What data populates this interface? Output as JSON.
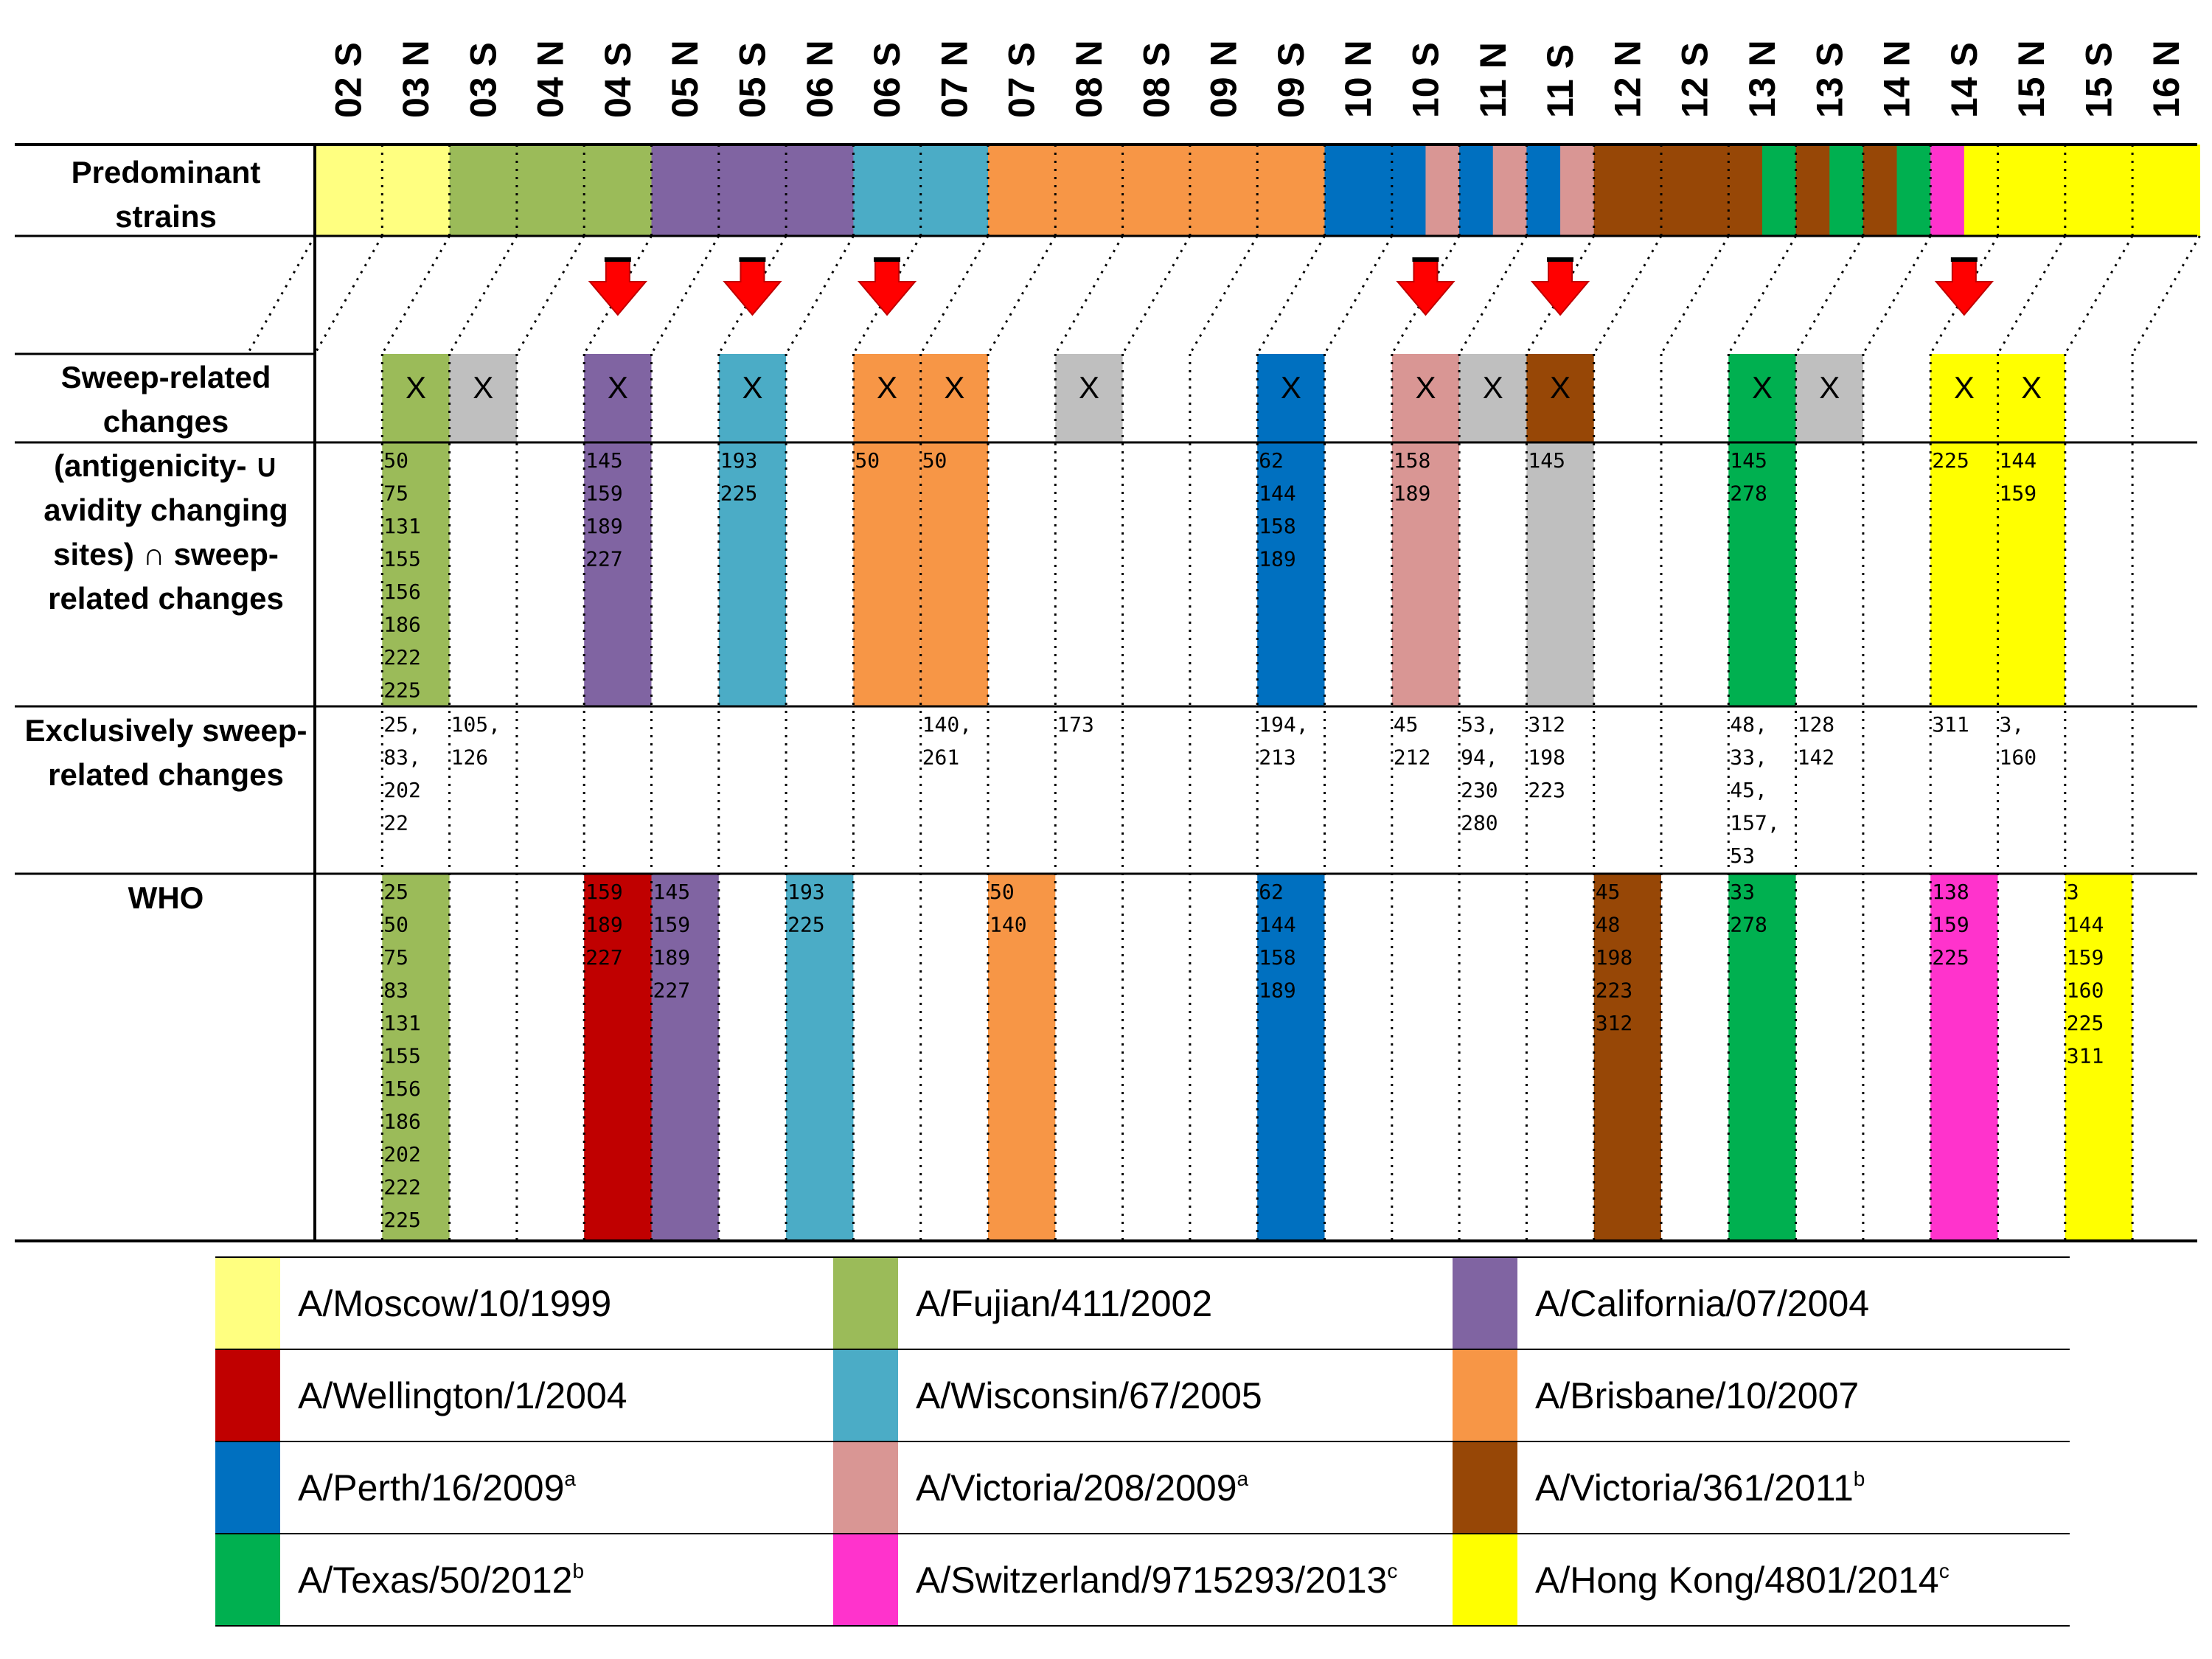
{
  "seasons": [
    "02 S",
    "03 N",
    "03 S",
    "04 N",
    "04 S",
    "05 N",
    "05 S",
    "06 N",
    "06 S",
    "07 N",
    "07 S",
    "08 N",
    "08 S",
    "09 N",
    "09 S",
    "10 N",
    "10 S",
    "11 N",
    "11 S",
    "12 N",
    "12 S",
    "13 N",
    "13 S",
    "14 N",
    "14 S",
    "15 N",
    "15 S",
    "16 N"
  ],
  "row_labels": {
    "predominant": [
      "Predominant",
      "strains"
    ],
    "sweep": [
      "Sweep-related",
      "changes"
    ],
    "intersection": [
      "(antigenicity- ∪",
      "avidity changing",
      "sites) ∩ sweep-",
      "related changes"
    ],
    "exclusive": [
      "Exclusively sweep-",
      "related changes"
    ],
    "who": [
      "WHO"
    ]
  },
  "strains": {
    "moscow": {
      "name": "A/Moscow/10/1999",
      "sup": "",
      "color": "#FFFF80"
    },
    "fujian": {
      "name": "A/Fujian/411/2002",
      "sup": "",
      "color": "#9BBB59"
    },
    "california": {
      "name": "A/California/07/2004",
      "sup": "",
      "color": "#8064A2"
    },
    "wellington": {
      "name": "A/Wellington/1/2004",
      "sup": "",
      "color": "#C00000"
    },
    "wisconsin": {
      "name": "A/Wisconsin/67/2005",
      "sup": "",
      "color": "#4BACC6"
    },
    "brisbane": {
      "name": "A/Brisbane/10/2007",
      "sup": "",
      "color": "#F79646"
    },
    "perth": {
      "name": "A/Perth/16/2009",
      "sup": "a",
      "color": "#0070C0"
    },
    "victoria09": {
      "name": "A/Victoria/208/2009",
      "sup": "a",
      "color": "#D99694"
    },
    "victoria11": {
      "name": "A/Victoria/361/2011",
      "sup": "b",
      "color": "#974706"
    },
    "texas": {
      "name": "A/Texas/50/2012",
      "sup": "b",
      "color": "#00B050"
    },
    "switzerland": {
      "name": "A/Switzerland/9715293/2013",
      "sup": "c",
      "color": "#FF33CC"
    },
    "hongkong": {
      "name": "A/Hong Kong/4801/2014",
      "sup": "c",
      "color": "#FFFF00"
    },
    "none": {
      "color": "#BFBFBF"
    }
  },
  "legend_order": [
    "moscow",
    "fujian",
    "california",
    "wellington",
    "wisconsin",
    "brisbane",
    "perth",
    "victoria09",
    "victoria11",
    "texas",
    "switzerland",
    "hongkong"
  ],
  "predominant": [
    {
      "from": 0,
      "to": 2,
      "strain": "moscow"
    },
    {
      "from": 2,
      "to": 5,
      "strain": "fujian"
    },
    {
      "from": 5,
      "to": 8,
      "strain": "california"
    },
    {
      "from": 8,
      "to": 10,
      "strain": "wisconsin"
    },
    {
      "from": 10,
      "to": 15,
      "strain": "brisbane"
    },
    {
      "from": 15,
      "to": 16.5,
      "strain": "perth"
    },
    {
      "from": 16.5,
      "to": 17,
      "strain": "victoria09"
    },
    {
      "from": 17,
      "to": 17.5,
      "strain": "perth"
    },
    {
      "from": 17.5,
      "to": 18,
      "strain": "victoria09"
    },
    {
      "from": 18,
      "to": 18.5,
      "strain": "perth"
    },
    {
      "from": 18.5,
      "to": 19,
      "strain": "victoria09"
    },
    {
      "from": 19,
      "to": 21.5,
      "strain": "victoria11"
    },
    {
      "from": 21.5,
      "to": 22,
      "strain": "texas"
    },
    {
      "from": 22,
      "to": 22.5,
      "strain": "victoria11"
    },
    {
      "from": 22.5,
      "to": 23,
      "strain": "texas"
    },
    {
      "from": 23,
      "to": 23.5,
      "strain": "victoria11"
    },
    {
      "from": 23.5,
      "to": 24,
      "strain": "texas"
    },
    {
      "from": 24,
      "to": 24.5,
      "strain": "switzerland"
    },
    {
      "from": 24.5,
      "to": 28,
      "strain": "hongkong"
    }
  ],
  "arrows": [
    4,
    6,
    8,
    16,
    18,
    24
  ],
  "sweep": [
    {
      "col": 1,
      "strain": "fujian",
      "mark": "X",
      "intersection": [
        "50",
        "75",
        "131",
        "155",
        "156",
        "186",
        "222",
        "225"
      ],
      "exclusive": [
        "25,",
        "83,",
        "202",
        "22"
      ]
    },
    {
      "col": 2,
      "strain": "none",
      "mark": "X",
      "intersection": [],
      "exclusive": [
        "105,",
        "126"
      ]
    },
    {
      "col": 4,
      "strain": "california",
      "mark": "X",
      "intersection": [
        "145",
        "159",
        "189",
        "227"
      ],
      "exclusive": []
    },
    {
      "col": 6,
      "strain": "wisconsin",
      "mark": "X",
      "intersection": [
        "193",
        "225"
      ],
      "exclusive": []
    },
    {
      "col": 8,
      "strain": "brisbane",
      "mark": "X",
      "intersection": [
        "50"
      ],
      "exclusive": []
    },
    {
      "col": 9,
      "strain": "brisbane",
      "mark": "X",
      "intersection": [
        "50"
      ],
      "exclusive": [
        "140,",
        "261"
      ]
    },
    {
      "col": 11,
      "strain": "none",
      "mark": "X",
      "intersection": [],
      "exclusive": [
        "173"
      ]
    },
    {
      "col": 14,
      "strain": "perth",
      "mark": "X",
      "intersection": [
        "62",
        "144",
        "158",
        "189"
      ],
      "exclusive": [
        "194,",
        "213"
      ]
    },
    {
      "col": 16,
      "strain": "victoria09",
      "mark": "X",
      "intersection": [
        "158",
        "189"
      ],
      "exclusive": [
        "45",
        "212"
      ]
    },
    {
      "col": 17,
      "strain": "none",
      "mark": "X",
      "intersection": [],
      "exclusive": [
        "53,",
        "94,",
        "230",
        "280"
      ]
    },
    {
      "col": 18,
      "strain": "victoria11",
      "mark": "X",
      "intersection": [
        "145"
      ],
      "exclusive": [
        "312",
        "198",
        "223"
      ],
      "int_strain": "none"
    },
    {
      "col": 21,
      "strain": "texas",
      "mark": "X",
      "intersection": [
        "145",
        "278"
      ],
      "exclusive": [
        "48,",
        "33,",
        "45,",
        "157,",
        "53"
      ]
    },
    {
      "col": 22,
      "strain": "none",
      "mark": "X",
      "intersection": [],
      "exclusive": [
        "128",
        "142"
      ]
    },
    {
      "col": 24,
      "strain": "hongkong",
      "mark": "X",
      "intersection": [
        "225"
      ],
      "exclusive": [
        "311"
      ]
    },
    {
      "col": 25,
      "strain": "hongkong",
      "mark": "X",
      "intersection": [
        "144",
        "159"
      ],
      "exclusive": [
        "3,",
        "160"
      ]
    }
  ],
  "who": [
    {
      "col": 1,
      "strain": "fujian",
      "sites": [
        "25",
        "50",
        "75",
        "83",
        "131",
        "155",
        "156",
        "186",
        "202",
        "222",
        "225"
      ]
    },
    {
      "col": 4,
      "strain": "wellington",
      "sites": [
        "159",
        "189",
        "227"
      ]
    },
    {
      "col": 5,
      "strain": "california",
      "sites": [
        "145",
        "159",
        "189",
        "227"
      ]
    },
    {
      "col": 7,
      "strain": "wisconsin",
      "sites": [
        "193",
        "225"
      ]
    },
    {
      "col": 10,
      "strain": "brisbane",
      "sites": [
        "50",
        "140"
      ]
    },
    {
      "col": 14,
      "strain": "perth",
      "sites": [
        "62",
        "144",
        "158",
        "189"
      ]
    },
    {
      "col": 19,
      "strain": "victoria11",
      "sites": [
        "45",
        "48",
        "198",
        "223",
        "312"
      ]
    },
    {
      "col": 21,
      "strain": "texas",
      "sites": [
        "33",
        "278"
      ]
    },
    {
      "col": 24,
      "strain": "switzerland",
      "sites": [
        "138",
        "159",
        "225"
      ]
    },
    {
      "col": 26,
      "strain": "hongkong",
      "sites": [
        "3",
        "144",
        "159",
        "160",
        "225",
        "311"
      ]
    }
  ]
}
